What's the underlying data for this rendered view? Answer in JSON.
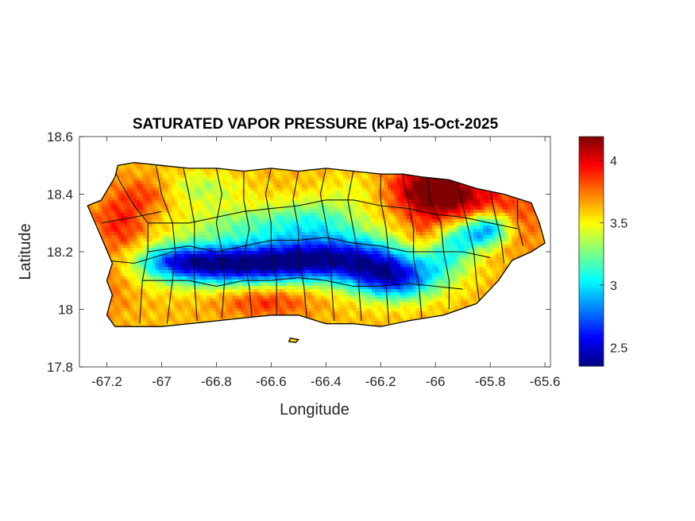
{
  "chart_data": {
    "type": "heatmap",
    "title": "SATURATED VAPOR PRESSURE (kPa) 15-Oct-2025",
    "xlabel": "Longitude",
    "ylabel": "Latitude",
    "xlim": [
      -67.3,
      -65.58
    ],
    "ylim": [
      17.8,
      18.6
    ],
    "xticks": [
      {
        "value": -67.2,
        "label": "-67.2"
      },
      {
        "value": -67,
        "label": "-67"
      },
      {
        "value": -66.8,
        "label": "-66.8"
      },
      {
        "value": -66.6,
        "label": "-66.6"
      },
      {
        "value": -66.4,
        "label": "-66.4"
      },
      {
        "value": -66.2,
        "label": "-66.2"
      },
      {
        "value": -66,
        "label": "-66"
      },
      {
        "value": -65.8,
        "label": "-65.8"
      },
      {
        "value": -65.6,
        "label": "-65.6"
      }
    ],
    "yticks": [
      {
        "value": 17.8,
        "label": "17.8"
      },
      {
        "value": 18,
        "label": "18"
      },
      {
        "value": 18.2,
        "label": "18.2"
      },
      {
        "value": 18.4,
        "label": "18.4"
      },
      {
        "value": 18.6,
        "label": "18.6"
      }
    ],
    "colorbar": {
      "min": 2.35,
      "max": 4.19,
      "colormap": "jet",
      "ticks": [
        {
          "value": 2.5,
          "label": "2.5"
        },
        {
          "value": 3,
          "label": "3"
        },
        {
          "value": 3.5,
          "label": "3.5"
        },
        {
          "value": 4,
          "label": "4"
        }
      ]
    },
    "grid": false,
    "field": {
      "base_value": 3.62,
      "features": [
        {
          "lon": -66.58,
          "lat": 18.16,
          "amp": -0.95,
          "sx": 0.22,
          "sy": 0.05
        },
        {
          "lon": -66.82,
          "lat": 18.15,
          "amp": -0.6,
          "sx": 0.16,
          "sy": 0.05
        },
        {
          "lon": -66.4,
          "lat": 18.2,
          "amp": -0.55,
          "sx": 0.14,
          "sy": 0.06
        },
        {
          "lon": -66.95,
          "lat": 18.17,
          "amp": -0.45,
          "sx": 0.1,
          "sy": 0.04
        },
        {
          "lon": -66.14,
          "lat": 18.1,
          "amp": -0.8,
          "sx": 0.11,
          "sy": 0.05
        },
        {
          "lon": -66.22,
          "lat": 18.16,
          "amp": -0.5,
          "sx": 0.1,
          "sy": 0.06
        },
        {
          "lon": -65.98,
          "lat": 18.18,
          "amp": -0.45,
          "sx": 0.08,
          "sy": 0.05
        },
        {
          "lon": -65.8,
          "lat": 18.28,
          "amp": -0.7,
          "sx": 0.06,
          "sy": 0.04
        },
        {
          "lon": -65.9,
          "lat": 18.25,
          "amp": -0.4,
          "sx": 0.07,
          "sy": 0.04
        },
        {
          "lon": -66.68,
          "lat": 18.29,
          "amp": -0.35,
          "sx": 0.18,
          "sy": 0.05
        },
        {
          "lon": -66.42,
          "lat": 18.32,
          "amp": -0.3,
          "sx": 0.12,
          "sy": 0.05
        },
        {
          "lon": -66.85,
          "lat": 18.42,
          "amp": -0.25,
          "sx": 0.1,
          "sy": 0.04
        },
        {
          "lon": -66.02,
          "lat": 18.42,
          "amp": 0.55,
          "sx": 0.1,
          "sy": 0.06
        },
        {
          "lon": -65.9,
          "lat": 18.38,
          "amp": 0.35,
          "sx": 0.12,
          "sy": 0.06
        },
        {
          "lon": -65.7,
          "lat": 18.3,
          "amp": 0.2,
          "sx": 0.07,
          "sy": 0.08
        },
        {
          "lon": -66.04,
          "lat": 18.24,
          "amp": 0.25,
          "sx": 0.05,
          "sy": 0.06
        },
        {
          "lon": -67.15,
          "lat": 18.3,
          "amp": 0.3,
          "sx": 0.07,
          "sy": 0.08
        },
        {
          "lon": -67.05,
          "lat": 18.4,
          "amp": 0.2,
          "sx": 0.06,
          "sy": 0.04
        },
        {
          "lon": -66.62,
          "lat": 18.03,
          "amp": 0.28,
          "sx": 0.12,
          "sy": 0.04
        },
        {
          "lon": -67.2,
          "lat": 18.08,
          "amp": 0.15,
          "sx": 0.06,
          "sy": 0.07
        },
        {
          "lon": -66.3,
          "lat": 18.42,
          "amp": -0.12,
          "sx": 0.08,
          "sy": 0.04
        }
      ]
    },
    "regions": [
      {
        "name": "Puerto Rico",
        "outline": [
          [
            -67.27,
            18.36
          ],
          [
            -67.22,
            18.38
          ],
          [
            -67.17,
            18.46
          ],
          [
            -67.16,
            18.5
          ],
          [
            -67.1,
            18.51
          ],
          [
            -67.0,
            18.5
          ],
          [
            -66.9,
            18.49
          ],
          [
            -66.8,
            18.49
          ],
          [
            -66.7,
            18.48
          ],
          [
            -66.6,
            18.49
          ],
          [
            -66.5,
            18.48
          ],
          [
            -66.4,
            18.49
          ],
          [
            -66.3,
            18.48
          ],
          [
            -66.2,
            18.47
          ],
          [
            -66.12,
            18.47
          ],
          [
            -66.05,
            18.46
          ],
          [
            -65.95,
            18.45
          ],
          [
            -65.85,
            18.42
          ],
          [
            -65.75,
            18.4
          ],
          [
            -65.65,
            18.37
          ],
          [
            -65.62,
            18.3
          ],
          [
            -65.6,
            18.23
          ],
          [
            -65.65,
            18.2
          ],
          [
            -65.72,
            18.17
          ],
          [
            -65.77,
            18.1
          ],
          [
            -65.85,
            18.02
          ],
          [
            -65.97,
            17.98
          ],
          [
            -66.1,
            17.96
          ],
          [
            -66.2,
            17.94
          ],
          [
            -66.3,
            17.95
          ],
          [
            -66.4,
            17.95
          ],
          [
            -66.5,
            17.98
          ],
          [
            -66.6,
            17.98
          ],
          [
            -66.7,
            17.97
          ],
          [
            -66.8,
            17.96
          ],
          [
            -66.9,
            17.95
          ],
          [
            -67.0,
            17.94
          ],
          [
            -67.1,
            17.94
          ],
          [
            -67.17,
            17.94
          ],
          [
            -67.2,
            17.98
          ],
          [
            -67.18,
            18.05
          ],
          [
            -67.2,
            18.1
          ],
          [
            -67.18,
            18.16
          ],
          [
            -67.22,
            18.25
          ],
          [
            -67.27,
            18.36
          ]
        ]
      },
      {
        "name": "Caja de Muertos",
        "outline": [
          [
            -66.53,
            17.9
          ],
          [
            -66.5,
            17.895
          ],
          [
            -66.51,
            17.885
          ],
          [
            -66.535,
            17.888
          ],
          [
            -66.53,
            17.9
          ]
        ]
      }
    ],
    "boundaries": [
      [
        [
          -67.18,
          18.5
        ],
        [
          -67.15,
          18.44
        ],
        [
          -67.1,
          18.36
        ],
        [
          -67.05,
          18.3
        ],
        [
          -67.05,
          18.2
        ],
        [
          -67.07,
          18.1
        ],
        [
          -67.08,
          17.95
        ]
      ],
      [
        [
          -67.22,
          18.3
        ],
        [
          -67.1,
          18.32
        ],
        [
          -67.0,
          18.34
        ]
      ],
      [
        [
          -67.2,
          18.17
        ],
        [
          -67.1,
          18.16
        ],
        [
          -66.96,
          18.2
        ]
      ],
      [
        [
          -67.02,
          18.5
        ],
        [
          -67.0,
          18.4
        ],
        [
          -66.96,
          18.3
        ],
        [
          -66.95,
          18.2
        ],
        [
          -66.96,
          18.1
        ],
        [
          -66.98,
          17.95
        ]
      ],
      [
        [
          -66.92,
          18.49
        ],
        [
          -66.9,
          18.4
        ],
        [
          -66.88,
          18.3
        ],
        [
          -66.88,
          18.2
        ],
        [
          -66.88,
          18.1
        ],
        [
          -66.87,
          17.96
        ]
      ],
      [
        [
          -66.8,
          18.49
        ],
        [
          -66.78,
          18.4
        ],
        [
          -66.8,
          18.3
        ],
        [
          -66.78,
          18.2
        ],
        [
          -66.77,
          18.1
        ],
        [
          -66.78,
          17.97
        ]
      ],
      [
        [
          -66.7,
          18.48
        ],
        [
          -66.7,
          18.38
        ],
        [
          -66.68,
          18.28
        ],
        [
          -66.7,
          18.18
        ],
        [
          -66.68,
          18.08
        ],
        [
          -66.67,
          17.97
        ]
      ],
      [
        [
          -66.6,
          18.49
        ],
        [
          -66.62,
          18.4
        ],
        [
          -66.6,
          18.3
        ],
        [
          -66.6,
          18.2
        ],
        [
          -66.58,
          18.1
        ],
        [
          -66.58,
          17.98
        ]
      ],
      [
        [
          -66.5,
          18.48
        ],
        [
          -66.52,
          18.38
        ],
        [
          -66.5,
          18.28
        ],
        [
          -66.5,
          18.18
        ],
        [
          -66.48,
          18.08
        ],
        [
          -66.47,
          17.97
        ]
      ],
      [
        [
          -66.4,
          18.49
        ],
        [
          -66.42,
          18.4
        ],
        [
          -66.4,
          18.3
        ],
        [
          -66.38,
          18.2
        ],
        [
          -66.38,
          18.1
        ],
        [
          -66.37,
          17.96
        ]
      ],
      [
        [
          -66.3,
          18.48
        ],
        [
          -66.32,
          18.38
        ],
        [
          -66.3,
          18.28
        ],
        [
          -66.28,
          18.18
        ],
        [
          -66.28,
          18.08
        ],
        [
          -66.27,
          17.96
        ]
      ],
      [
        [
          -66.2,
          18.47
        ],
        [
          -66.2,
          18.38
        ],
        [
          -66.18,
          18.28
        ],
        [
          -66.17,
          18.18
        ],
        [
          -66.18,
          18.08
        ],
        [
          -66.17,
          17.95
        ]
      ],
      [
        [
          -66.12,
          18.47
        ],
        [
          -66.1,
          18.38
        ],
        [
          -66.08,
          18.28
        ],
        [
          -66.08,
          18.18
        ],
        [
          -66.06,
          18.08
        ],
        [
          -66.05,
          17.97
        ]
      ],
      [
        [
          -66.03,
          18.46
        ],
        [
          -66.02,
          18.38
        ],
        [
          -65.98,
          18.3
        ],
        [
          -65.97,
          18.2
        ],
        [
          -65.95,
          18.1
        ],
        [
          -65.95,
          18.0
        ]
      ],
      [
        [
          -65.92,
          18.44
        ],
        [
          -65.9,
          18.36
        ],
        [
          -65.88,
          18.28
        ],
        [
          -65.86,
          18.2
        ],
        [
          -65.85,
          18.1
        ],
        [
          -65.84,
          18.03
        ]
      ],
      [
        [
          -65.8,
          18.41
        ],
        [
          -65.78,
          18.32
        ],
        [
          -65.76,
          18.24
        ],
        [
          -65.75,
          18.16
        ]
      ],
      [
        [
          -65.7,
          18.38
        ],
        [
          -65.7,
          18.3
        ],
        [
          -65.68,
          18.22
        ]
      ],
      [
        [
          -67.05,
          18.3
        ],
        [
          -66.9,
          18.3
        ],
        [
          -66.8,
          18.32
        ],
        [
          -66.7,
          18.34
        ],
        [
          -66.6,
          18.35
        ],
        [
          -66.5,
          18.36
        ],
        [
          -66.4,
          18.38
        ],
        [
          -66.3,
          18.38
        ],
        [
          -66.2,
          18.36
        ],
        [
          -66.1,
          18.35
        ],
        [
          -66.0,
          18.33
        ],
        [
          -65.9,
          18.32
        ],
        [
          -65.8,
          18.3
        ],
        [
          -65.7,
          18.28
        ]
      ],
      [
        [
          -67.05,
          18.2
        ],
        [
          -66.9,
          18.22
        ],
        [
          -66.8,
          18.2
        ],
        [
          -66.7,
          18.22
        ],
        [
          -66.6,
          18.24
        ],
        [
          -66.5,
          18.24
        ],
        [
          -66.4,
          18.25
        ],
        [
          -66.3,
          18.23
        ],
        [
          -66.2,
          18.22
        ],
        [
          -66.1,
          18.2
        ],
        [
          -66.0,
          18.2
        ],
        [
          -65.9,
          18.2
        ],
        [
          -65.8,
          18.18
        ]
      ],
      [
        [
          -67.07,
          18.1
        ],
        [
          -66.9,
          18.1
        ],
        [
          -66.8,
          18.08
        ],
        [
          -66.7,
          18.1
        ],
        [
          -66.6,
          18.1
        ],
        [
          -66.5,
          18.11
        ],
        [
          -66.4,
          18.1
        ],
        [
          -66.3,
          18.08
        ],
        [
          -66.2,
          18.08
        ],
        [
          -66.1,
          18.09
        ],
        [
          -66.0,
          18.08
        ],
        [
          -65.9,
          18.07
        ]
      ]
    ]
  }
}
